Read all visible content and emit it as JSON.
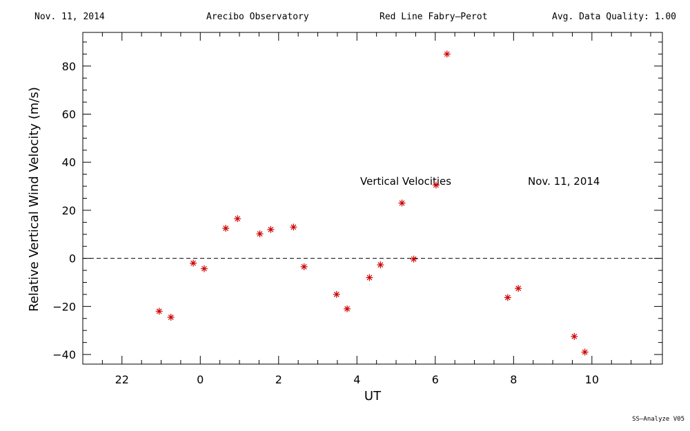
{
  "header": {
    "date": "Nov. 11, 2014",
    "site": "Arecibo Observatory",
    "instrument": "Red Line Fabry–Perot",
    "quality": "Avg. Data Quality: 1.00"
  },
  "footer": {
    "software": "SS–Analyze V05"
  },
  "chart_data": {
    "type": "scatter",
    "xlabel": "UT",
    "ylabel": "Relative Vertical Wind Velocity (m/s)",
    "xlim": [
      21.0,
      35.8
    ],
    "ylim": [
      -44,
      94
    ],
    "x_ticks": [
      22,
      24,
      26,
      28,
      30,
      32,
      34
    ],
    "x_tick_labels": [
      "22",
      "0",
      "2",
      "4",
      "6",
      "8",
      "10"
    ],
    "y_ticks": [
      -40,
      -20,
      0,
      20,
      40,
      60,
      80
    ],
    "y_tick_labels": [
      "−40",
      "−20",
      "0",
      "20",
      "40",
      "60",
      "80"
    ],
    "zero_line": true,
    "marker": "asterisk",
    "marker_color": "#cc0000",
    "annotations": [
      "Vertical Velocities",
      "Nov. 11, 2014"
    ],
    "series": [
      {
        "x": [
          22.95,
          23.25,
          23.82,
          24.1,
          24.65,
          24.95,
          25.52,
          25.8,
          26.38,
          26.65,
          27.48,
          27.75,
          28.32,
          28.6,
          29.15,
          29.45,
          30.02,
          30.3,
          31.85,
          32.12,
          33.55,
          33.82
        ],
        "y": [
          -22,
          -24.5,
          -2,
          -4.3,
          12.5,
          16.5,
          10.2,
          12,
          13,
          -3.5,
          -15,
          -21,
          -8,
          -2.7,
          23,
          -0.3,
          30.5,
          85,
          -16.3,
          -12.5,
          -32.5,
          -39
        ]
      }
    ]
  }
}
